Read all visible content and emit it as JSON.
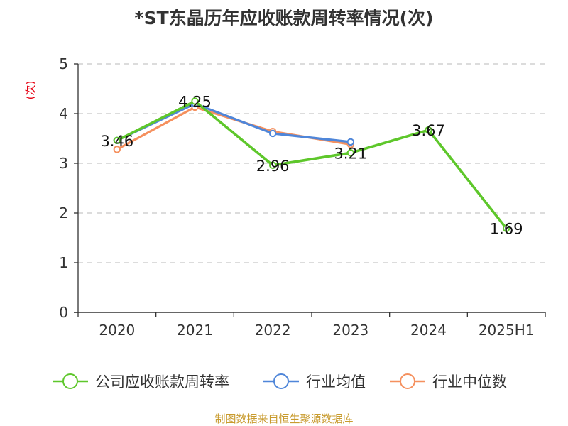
{
  "chart_data": {
    "type": "line",
    "title": "*ST东晶历年应收账款周转率情况(次)",
    "ylabel": "(次)",
    "categories": [
      "2020",
      "2021",
      "2022",
      "2023",
      "2024",
      "2025H1"
    ],
    "ylim": [
      0,
      5
    ],
    "yticks": [
      "0",
      "1",
      "2",
      "3",
      "4",
      "5"
    ],
    "grid": true,
    "legend_position": "bottom",
    "series": [
      {
        "name": "公司应收账款周转率",
        "color": "#5ec72b",
        "values": [
          3.46,
          4.25,
          2.96,
          3.21,
          3.67,
          1.69
        ],
        "labels": [
          "3.46",
          "4.25",
          "2.96",
          "3.21",
          "3.67",
          "1.69"
        ]
      },
      {
        "name": "行业均值",
        "color": "#4f86d9",
        "values": [
          3.46,
          4.2,
          3.6,
          3.43,
          null,
          null
        ]
      },
      {
        "name": "行业中位数",
        "color": "#f5905e",
        "values": [
          3.28,
          4.13,
          3.64,
          3.38,
          null,
          null
        ]
      }
    ]
  },
  "source": "制图数据来自恒生聚源数据库"
}
